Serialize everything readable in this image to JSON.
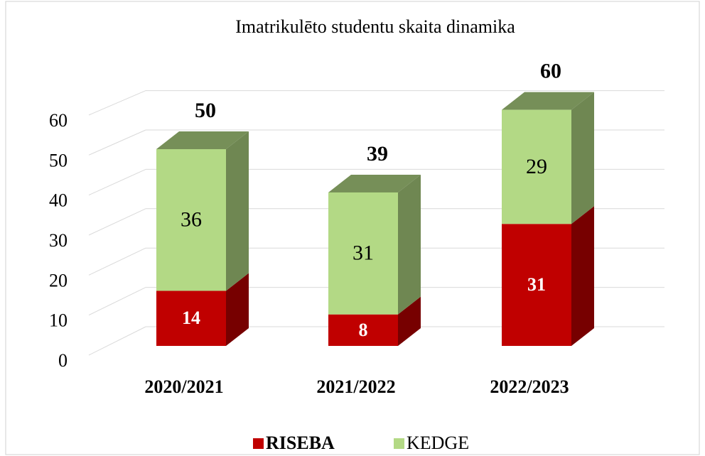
{
  "chart_data": {
    "type": "bar3d_stacked",
    "title": "Imatrikulēto studentu skaita dinamika",
    "categories": [
      "2020/2021",
      "2021/2022",
      "2022/2023"
    ],
    "series": [
      {
        "name": "RISEBA",
        "color": "#c00000",
        "values": [
          14,
          8,
          31
        ]
      },
      {
        "name": "KEDGE",
        "color": "#b3d985",
        "values": [
          36,
          31,
          29
        ]
      }
    ],
    "totals": [
      50,
      39,
      60
    ],
    "ylim": [
      0,
      60
    ],
    "yticks": [
      0,
      10,
      20,
      30,
      40,
      50,
      60
    ],
    "grid": true,
    "legend": "bottom"
  }
}
